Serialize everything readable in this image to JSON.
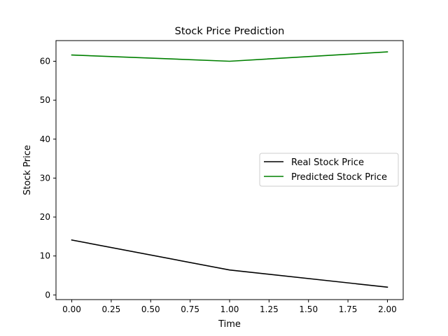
{
  "chart_data": {
    "type": "line",
    "title": "Stock Price Prediction",
    "xlabel": "Time",
    "ylabel": "Stock Price",
    "xlim": [
      -0.1,
      2.1
    ],
    "ylim": [
      -1.2,
      65.3
    ],
    "xticks": [
      0.0,
      0.25,
      0.5,
      0.75,
      1.0,
      1.25,
      1.5,
      1.75,
      2.0
    ],
    "xtick_labels": [
      "0.00",
      "0.25",
      "0.50",
      "0.75",
      "1.00",
      "1.25",
      "1.50",
      "1.75",
      "2.00"
    ],
    "yticks": [
      0,
      10,
      20,
      30,
      40,
      50,
      60
    ],
    "ytick_labels": [
      "0",
      "10",
      "20",
      "30",
      "40",
      "50",
      "60"
    ],
    "grid": false,
    "legend_position": "center-right",
    "x": [
      0,
      1,
      2
    ],
    "series": [
      {
        "name": "Real Stock Price",
        "color": "#000000",
        "values": [
          14.1,
          6.4,
          2.0
        ]
      },
      {
        "name": "Predicted Stock Price",
        "color": "#008000",
        "values": [
          61.6,
          60.0,
          62.4
        ]
      }
    ]
  }
}
